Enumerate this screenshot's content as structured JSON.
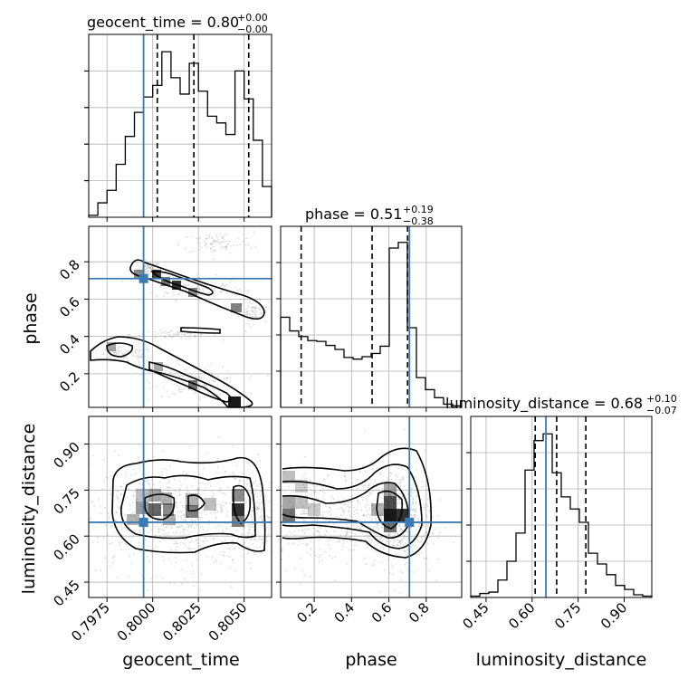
{
  "figure": {
    "type": "corner_plot",
    "truth_color": "#3b7bb5",
    "grid": true
  },
  "chart_data": [
    {
      "type": "histogram",
      "parameter": "geocent_time",
      "title": {
        "main": "geocent_time = 0.80",
        "sup": "+0.00",
        "sub": "−0.00"
      },
      "xlim": [
        0.7965,
        0.8065
      ],
      "xticks": [
        "0.7975",
        "0.8000",
        "0.8025",
        "0.8050"
      ],
      "xtick_values": [
        0.7975,
        0.8,
        0.8025,
        0.805
      ],
      "bin_edges": [
        0.7965,
        0.797,
        0.7975,
        0.798,
        0.7985,
        0.799,
        0.7995,
        0.8,
        0.8005,
        0.801,
        0.8015,
        0.802,
        0.8025,
        0.803,
        0.8035,
        0.804,
        0.8045,
        0.805,
        0.8055,
        0.806,
        0.8065
      ],
      "counts": [
        2,
        15,
        28,
        55,
        84,
        109,
        125,
        137,
        172,
        145,
        128,
        160,
        131,
        105,
        98,
        86,
        152,
        123,
        80,
        32
      ],
      "ymax": 190,
      "quantiles": [
        0.80025,
        0.80225,
        0.80525
      ],
      "truth": 0.7995
    },
    {
      "type": "scatter_contour",
      "xparameter": "geocent_time",
      "yparameter": "phase",
      "xlim": [
        0.7965,
        0.8065
      ],
      "ylim": [
        0.02,
        0.99
      ],
      "ylabel": "phase",
      "yticks": [
        "0.2",
        "0.4",
        "0.6",
        "0.8"
      ],
      "ytick_values": [
        0.2,
        0.4,
        0.6,
        0.8
      ],
      "truth": {
        "x": 0.7995,
        "y": 0.71
      }
    },
    {
      "type": "histogram",
      "parameter": "phase",
      "title": {
        "main": "phase = 0.51",
        "sup": "+0.19",
        "sub": "−0.38"
      },
      "xlim": [
        0.02,
        0.99
      ],
      "bin_edges": [
        0.02,
        0.0685,
        0.117,
        0.1655,
        0.214,
        0.2625,
        0.311,
        0.3595,
        0.408,
        0.4565,
        0.505,
        0.5535,
        0.602,
        0.6505,
        0.699,
        0.7475,
        0.796,
        0.8445,
        0.893,
        0.9415,
        0.99
      ],
      "counts": [
        112,
        95,
        88,
        83,
        82,
        77,
        72,
        62,
        60,
        63,
        67,
        76,
        198,
        205,
        99,
        37,
        22,
        12,
        4,
        2
      ],
      "ymax": 225,
      "quantiles": [
        0.13,
        0.51,
        0.7
      ],
      "truth": 0.71
    },
    {
      "type": "scatter_contour",
      "xparameter": "geocent_time",
      "yparameter": "luminosity_distance",
      "xlim": [
        0.7965,
        0.8065
      ],
      "ylim": [
        0.4,
        0.99
      ],
      "ylabel": "luminosity_distance",
      "yticks": [
        "0.45",
        "0.60",
        "0.75",
        "0.90"
      ],
      "ytick_values": [
        0.45,
        0.6,
        0.75,
        0.9
      ],
      "xlabel": "geocent_time",
      "xticks": [
        "0.7975",
        "0.8000",
        "0.8025",
        "0.8050"
      ],
      "xtick_values": [
        0.7975,
        0.8,
        0.8025,
        0.805
      ],
      "truth": {
        "x": 0.7995,
        "y": 0.645
      }
    },
    {
      "type": "scatter_contour",
      "xparameter": "phase",
      "yparameter": "luminosity_distance",
      "xlim": [
        0.02,
        0.99
      ],
      "ylim": [
        0.4,
        0.99
      ],
      "xlabel": "phase",
      "xticks": [
        "0.2",
        "0.4",
        "0.6",
        "0.8"
      ],
      "xtick_values": [
        0.2,
        0.4,
        0.6,
        0.8
      ],
      "truth": {
        "x": 0.71,
        "y": 0.645
      }
    },
    {
      "type": "histogram",
      "parameter": "luminosity_distance",
      "title": {
        "main": "luminosity_distance = 0.68",
        "sup": "+0.10",
        "sub": "−0.07"
      },
      "xlim": [
        0.4,
        0.99
      ],
      "xlabel": "luminosity_distance",
      "xticks": [
        "0.45",
        "0.60",
        "0.75",
        "0.90"
      ],
      "xtick_values": [
        0.45,
        0.6,
        0.75,
        0.9
      ],
      "bin_edges": [
        0.4,
        0.4295,
        0.459,
        0.4885,
        0.518,
        0.5475,
        0.577,
        0.6065,
        0.636,
        0.6655,
        0.695,
        0.7245,
        0.754,
        0.7835,
        0.813,
        0.8425,
        0.872,
        0.9015,
        0.931,
        0.9605,
        0.99
      ],
      "counts": [
        1,
        3,
        4,
        13,
        27,
        48,
        95,
        117,
        122,
        93,
        75,
        66,
        56,
        33,
        25,
        17,
        9,
        6,
        2,
        1
      ],
      "ymax": 135,
      "quantiles": [
        0.61,
        0.68,
        0.775
      ],
      "truth": 0.645
    }
  ]
}
